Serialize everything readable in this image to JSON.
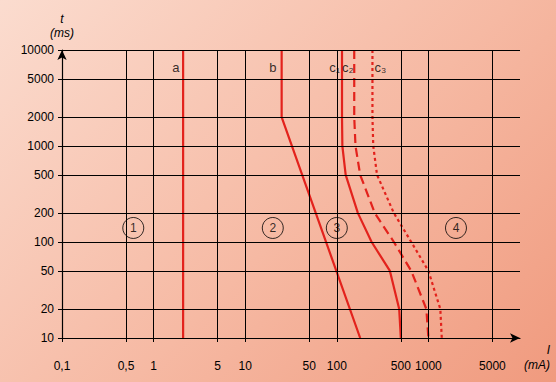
{
  "chart_data": {
    "type": "line",
    "xlabel": [
      "I",
      "(mA)"
    ],
    "ylabel": [
      "t",
      "(ms)"
    ],
    "log": true,
    "grid": true,
    "xlim": [
      0.1,
      10000
    ],
    "xticks": [
      {
        "value": 0.1,
        "label": "0,1"
      },
      {
        "value": 0.5,
        "label": "0,5"
      },
      1,
      5,
      10,
      50,
      100,
      500,
      1000,
      5000
    ],
    "ylim": [
      10,
      10000
    ],
    "yticks": [
      10,
      20,
      50,
      100,
      200,
      500,
      1000,
      2000,
      5000,
      10000
    ],
    "series": [
      {
        "color": "#e3221c",
        "line_style": "solid",
        "x": [
          2.1,
          2.1
        ],
        "values": [
          10,
          10000
        ]
      },
      {
        "color": "#e3221c",
        "line_style": "solid",
        "x": [
          25,
          25,
          180
        ],
        "values": [
          10000,
          2000,
          10
        ]
      },
      {
        "color": "#e3221c",
        "line_style": "solid",
        "x": [
          114,
          114,
          115,
          125,
          170,
          240,
          380,
          480,
          500
        ],
        "values": [
          10000,
          2000,
          1000,
          500,
          200,
          100,
          50,
          20,
          10
        ]
      },
      {
        "color": "#e3221c",
        "line_style": "dashed",
        "x": [
          155,
          155,
          160,
          180,
          260,
          420,
          650,
          950,
          1000
        ],
        "values": [
          10000,
          2000,
          1000,
          500,
          200,
          100,
          50,
          20,
          10
        ]
      },
      {
        "color": "#e3221c",
        "line_style": "dotted",
        "x": [
          245,
          245,
          250,
          275,
          420,
          650,
          1000,
          1350,
          1400
        ],
        "values": [
          10000,
          2000,
          1000,
          500,
          200,
          100,
          50,
          20,
          10
        ]
      }
    ],
    "annotations": [
      {
        "text": "a",
        "x": 1.75,
        "y": 6500
      },
      {
        "text": "b",
        "x": 20,
        "y": 6500
      },
      {
        "text": "c₁",
        "x": 95,
        "y": 6500
      },
      {
        "text": "c₂",
        "x": 132,
        "y": 6500
      },
      {
        "text": "c₃",
        "x": 300,
        "y": 6500
      },
      {
        "text": "1",
        "x": 0.6,
        "y": 140,
        "marker": "circle"
      },
      {
        "text": "2",
        "x": 20,
        "y": 140,
        "marker": "circle"
      },
      {
        "text": "3",
        "x": 100,
        "y": 140,
        "marker": "circle"
      },
      {
        "text": "4",
        "x": 2000,
        "y": 140,
        "marker": "circle"
      }
    ]
  }
}
